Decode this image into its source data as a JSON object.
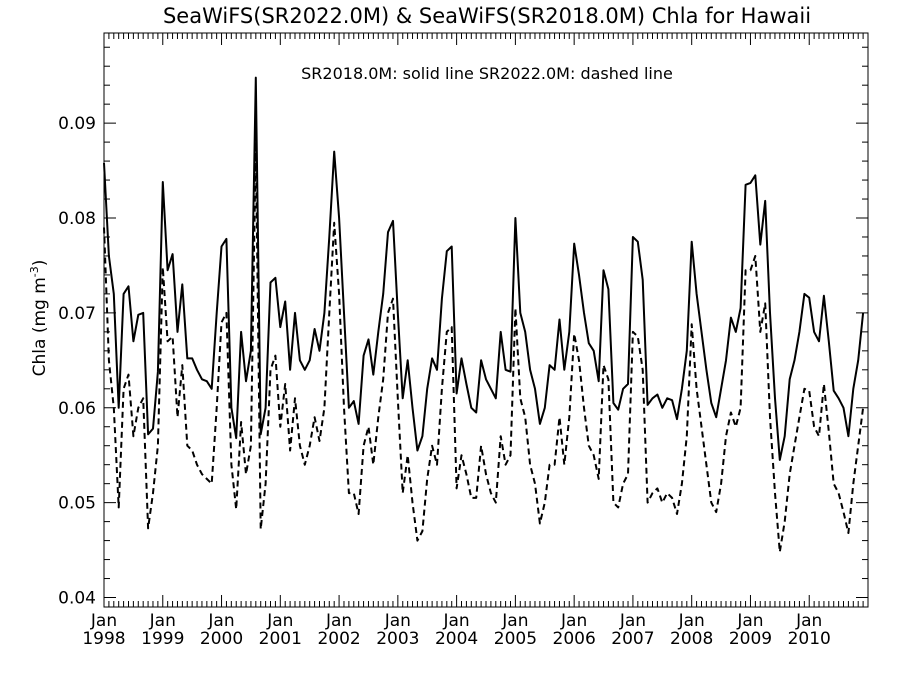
{
  "chart_data": {
    "type": "line",
    "title": "SeaWiFS(SR2022.0M) & SeaWiFS(SR2018.0M)  Chla for Hawaii",
    "annotation": "SR2018.0M: solid line   SR2022.0M: dashed line",
    "ylabel_main": "Chla (mg m",
    "ylabel_exp": "-3",
    "ylabel_close": ")",
    "xlabel": "",
    "ylim": [
      0.039,
      0.0995
    ],
    "yticks": [
      "0.04",
      "0.05",
      "0.06",
      "0.07",
      "0.08",
      "0.09"
    ],
    "ytick_values": [
      0.04,
      0.05,
      0.06,
      0.07,
      0.08,
      0.09
    ],
    "xlim": [
      1998.0,
      2011.0
    ],
    "xticks": [
      {
        "month": "Jan",
        "year": "1998",
        "value": 1998.0
      },
      {
        "month": "Jan",
        "year": "1999",
        "value": 1999.0
      },
      {
        "month": "Jan",
        "year": "2000",
        "value": 2000.0
      },
      {
        "month": "Jan",
        "year": "2001",
        "value": 2001.0
      },
      {
        "month": "Jan",
        "year": "2002",
        "value": 2002.0
      },
      {
        "month": "Jan",
        "year": "2003",
        "value": 2003.0
      },
      {
        "month": "Jan",
        "year": "2004",
        "value": 2004.0
      },
      {
        "month": "Jan",
        "year": "2005",
        "value": 2005.0
      },
      {
        "month": "Jan",
        "year": "2006",
        "value": 2006.0
      },
      {
        "month": "Jan",
        "year": "2007",
        "value": 2007.0
      },
      {
        "month": "Jan",
        "year": "2008",
        "value": 2008.0
      },
      {
        "month": "Jan",
        "year": "2009",
        "value": 2009.0
      },
      {
        "month": "Jan",
        "year": "2010",
        "value": 2010.0
      }
    ],
    "series": [
      {
        "style": "solid",
        "x": [
          1998.0,
          1998.083,
          1998.167,
          1998.25,
          1998.333,
          1998.417,
          1998.5,
          1998.583,
          1998.667,
          1998.75,
          1998.833,
          1998.917,
          1999.0,
          1999.083,
          1999.167,
          1999.25,
          1999.333,
          1999.417,
          1999.5,
          1999.583,
          1999.667,
          1999.75,
          1999.833,
          1999.917,
          2000.0,
          2000.083,
          2000.167,
          2000.25,
          2000.333,
          2000.417,
          2000.5,
          2000.583,
          2000.667,
          2000.75,
          2000.833,
          2000.917,
          2001.0,
          2001.083,
          2001.167,
          2001.25,
          2001.333,
          2001.417,
          2001.5,
          2001.583,
          2001.667,
          2001.75,
          2001.833,
          2001.917,
          2002.0,
          2002.083,
          2002.167,
          2002.25,
          2002.333,
          2002.417,
          2002.5,
          2002.583,
          2002.667,
          2002.75,
          2002.833,
          2002.917,
          2003.0,
          2003.083,
          2003.167,
          2003.25,
          2003.333,
          2003.417,
          2003.5,
          2003.583,
          2003.667,
          2003.75,
          2003.833,
          2003.917,
          2004.0,
          2004.083,
          2004.167,
          2004.25,
          2004.333,
          2004.417,
          2004.5,
          2004.583,
          2004.667,
          2004.75,
          2004.833,
          2004.917,
          2005.0,
          2005.083,
          2005.167,
          2005.25,
          2005.333,
          2005.417,
          2005.5,
          2005.583,
          2005.667,
          2005.75,
          2005.833,
          2005.917,
          2006.0,
          2006.083,
          2006.167,
          2006.25,
          2006.333,
          2006.417,
          2006.5,
          2006.583,
          2006.667,
          2006.75,
          2006.833,
          2006.917,
          2007.0,
          2007.083,
          2007.167,
          2007.25,
          2007.333,
          2007.417,
          2007.5,
          2007.583,
          2007.667,
          2007.75,
          2007.833,
          2007.917,
          2008.0,
          2008.083,
          2008.167,
          2008.25,
          2008.333,
          2008.417,
          2008.5,
          2008.583,
          2008.667,
          2008.75,
          2008.833,
          2008.917,
          2009.0,
          2009.083,
          2009.167,
          2009.25,
          2009.333,
          2009.417,
          2009.5,
          2009.583,
          2009.667,
          2009.75,
          2009.833,
          2009.917,
          2010.0,
          2010.083,
          2010.167,
          2010.25,
          2010.333,
          2010.417,
          2010.5,
          2010.583,
          2010.667,
          2010.75,
          2010.833,
          2010.917
        ],
        "y": [
          0.0858,
          0.076,
          0.072,
          0.06,
          0.072,
          0.0728,
          0.067,
          0.0698,
          0.07,
          0.0572,
          0.0578,
          0.0638,
          0.0838,
          0.0745,
          0.0762,
          0.068,
          0.073,
          0.0652,
          0.0652,
          0.064,
          0.063,
          0.0628,
          0.062,
          0.07,
          0.077,
          0.0778,
          0.06,
          0.0568,
          0.068,
          0.0628,
          0.066,
          0.0948,
          0.0572,
          0.06,
          0.0732,
          0.0737,
          0.0685,
          0.0712,
          0.064,
          0.07,
          0.065,
          0.064,
          0.065,
          0.0683,
          0.066,
          0.07,
          0.078,
          0.087,
          0.08,
          0.07,
          0.06,
          0.0607,
          0.0583,
          0.0655,
          0.0672,
          0.0635,
          0.068,
          0.072,
          0.0785,
          0.0797,
          0.07,
          0.061,
          0.065,
          0.06,
          0.0555,
          0.057,
          0.062,
          0.0652,
          0.064,
          0.0715,
          0.0765,
          0.077,
          0.0615,
          0.0652,
          0.0625,
          0.06,
          0.0595,
          0.065,
          0.063,
          0.062,
          0.061,
          0.068,
          0.064,
          0.0638,
          0.08,
          0.07,
          0.068,
          0.064,
          0.062,
          0.0583,
          0.06,
          0.0645,
          0.064,
          0.0693,
          0.064,
          0.068,
          0.0773,
          0.074,
          0.07,
          0.0668,
          0.066,
          0.0628,
          0.0745,
          0.0725,
          0.0605,
          0.0598,
          0.062,
          0.0625,
          0.078,
          0.0775,
          0.0735,
          0.0603,
          0.061,
          0.0614,
          0.06,
          0.061,
          0.0608,
          0.0588,
          0.062,
          0.066,
          0.0775,
          0.072,
          0.068,
          0.064,
          0.0605,
          0.059,
          0.062,
          0.065,
          0.0695,
          0.068,
          0.0705,
          0.0835,
          0.0837,
          0.0845,
          0.0772,
          0.0818,
          0.07,
          0.061,
          0.0545,
          0.057,
          0.063,
          0.065,
          0.068,
          0.072,
          0.0716,
          0.068,
          0.067,
          0.0718,
          0.067,
          0.0618,
          0.061,
          0.06,
          0.057,
          0.062,
          0.065,
          0.07
        ]
      },
      {
        "style": "dashed",
        "x": [
          1998.0,
          1998.083,
          1998.167,
          1998.25,
          1998.333,
          1998.417,
          1998.5,
          1998.583,
          1998.667,
          1998.75,
          1998.833,
          1998.917,
          1999.0,
          1999.083,
          1999.167,
          1999.25,
          1999.333,
          1999.417,
          1999.5,
          1999.583,
          1999.667,
          1999.75,
          1999.833,
          1999.917,
          2000.0,
          2000.083,
          2000.167,
          2000.25,
          2000.333,
          2000.417,
          2000.5,
          2000.583,
          2000.667,
          2000.75,
          2000.833,
          2000.917,
          2001.0,
          2001.083,
          2001.167,
          2001.25,
          2001.333,
          2001.417,
          2001.5,
          2001.583,
          2001.667,
          2001.75,
          2001.833,
          2001.917,
          2002.0,
          2002.083,
          2002.167,
          2002.25,
          2002.333,
          2002.417,
          2002.5,
          2002.583,
          2002.667,
          2002.75,
          2002.833,
          2002.917,
          2003.0,
          2003.083,
          2003.167,
          2003.25,
          2003.333,
          2003.417,
          2003.5,
          2003.583,
          2003.667,
          2003.75,
          2003.833,
          2003.917,
          2004.0,
          2004.083,
          2004.167,
          2004.25,
          2004.333,
          2004.417,
          2004.5,
          2004.583,
          2004.667,
          2004.75,
          2004.833,
          2004.917,
          2005.0,
          2005.083,
          2005.167,
          2005.25,
          2005.333,
          2005.417,
          2005.5,
          2005.583,
          2005.667,
          2005.75,
          2005.833,
          2005.917,
          2006.0,
          2006.083,
          2006.167,
          2006.25,
          2006.333,
          2006.417,
          2006.5,
          2006.583,
          2006.667,
          2006.75,
          2006.833,
          2006.917,
          2007.0,
          2007.083,
          2007.167,
          2007.25,
          2007.333,
          2007.417,
          2007.5,
          2007.583,
          2007.667,
          2007.75,
          2007.833,
          2007.917,
          2008.0,
          2008.083,
          2008.167,
          2008.25,
          2008.333,
          2008.417,
          2008.5,
          2008.583,
          2008.667,
          2008.75,
          2008.833,
          2008.917,
          2009.0,
          2009.083,
          2009.167,
          2009.25,
          2009.333,
          2009.417,
          2009.5,
          2009.583,
          2009.667,
          2009.75,
          2009.833,
          2009.917,
          2010.0,
          2010.083,
          2010.167,
          2010.25,
          2010.333,
          2010.417,
          2010.5,
          2010.583,
          2010.667,
          2010.75,
          2010.833,
          2010.917
        ],
        "y": [
          0.079,
          0.065,
          0.06,
          0.0495,
          0.062,
          0.0635,
          0.057,
          0.06,
          0.061,
          0.0473,
          0.051,
          0.056,
          0.0748,
          0.067,
          0.0675,
          0.059,
          0.0645,
          0.056,
          0.0555,
          0.054,
          0.053,
          0.0525,
          0.052,
          0.06,
          0.069,
          0.07,
          0.054,
          0.0493,
          0.0585,
          0.053,
          0.056,
          0.088,
          0.0472,
          0.052,
          0.064,
          0.0655,
          0.058,
          0.0625,
          0.0555,
          0.061,
          0.056,
          0.054,
          0.056,
          0.059,
          0.0565,
          0.06,
          0.07,
          0.0795,
          0.072,
          0.06,
          0.051,
          0.051,
          0.0488,
          0.056,
          0.058,
          0.054,
          0.059,
          0.063,
          0.07,
          0.0715,
          0.061,
          0.051,
          0.055,
          0.05,
          0.046,
          0.047,
          0.0525,
          0.056,
          0.054,
          0.062,
          0.068,
          0.0685,
          0.0515,
          0.055,
          0.053,
          0.0505,
          0.0505,
          0.056,
          0.053,
          0.051,
          0.05,
          0.057,
          0.054,
          0.055,
          0.0705,
          0.061,
          0.059,
          0.054,
          0.052,
          0.0478,
          0.05,
          0.054,
          0.054,
          0.059,
          0.054,
          0.059,
          0.0678,
          0.065,
          0.06,
          0.056,
          0.055,
          0.0525,
          0.0645,
          0.063,
          0.05,
          0.0495,
          0.052,
          0.053,
          0.068,
          0.0675,
          0.064,
          0.05,
          0.051,
          0.0515,
          0.05,
          0.051,
          0.0505,
          0.0488,
          0.052,
          0.057,
          0.0688,
          0.062,
          0.058,
          0.054,
          0.05,
          0.049,
          0.052,
          0.057,
          0.0595,
          0.058,
          0.06,
          0.0745,
          0.0745,
          0.076,
          0.068,
          0.071,
          0.059,
          0.051,
          0.0448,
          0.048,
          0.053,
          0.056,
          0.059,
          0.062,
          0.0618,
          0.058,
          0.057,
          0.0625,
          0.0575,
          0.052,
          0.051,
          0.049,
          0.0468,
          0.052,
          0.056,
          0.06
        ]
      }
    ]
  }
}
